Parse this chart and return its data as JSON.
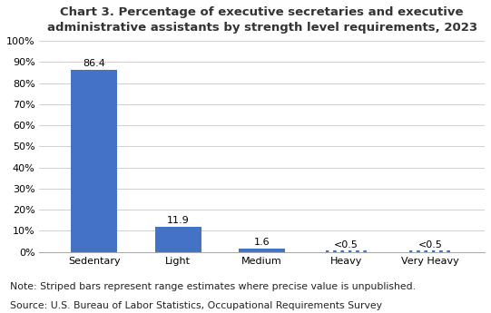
{
  "title": "Chart 3. Percentage of executive secretaries and executive\nadministrative assistants by strength level requirements, 2023",
  "categories": [
    "Sedentary",
    "Light",
    "Medium",
    "Heavy",
    "Very Heavy"
  ],
  "values": [
    86.4,
    11.9,
    1.6,
    0.3,
    0.3
  ],
  "labels": [
    "86.4",
    "11.9",
    "1.6",
    "<0.5",
    "<0.5"
  ],
  "bar_color": "#4472C4",
  "striped_indices": [
    3,
    4
  ],
  "solid_indices": [
    0,
    1,
    2
  ],
  "ylim": [
    0,
    100
  ],
  "yticks": [
    0,
    10,
    20,
    30,
    40,
    50,
    60,
    70,
    80,
    90,
    100
  ],
  "ytick_labels": [
    "0%",
    "10%",
    "20%",
    "30%",
    "40%",
    "50%",
    "60%",
    "70%",
    "80%",
    "90%",
    "100%"
  ],
  "note_line1": "Note: Striped bars represent range estimates where precise value is unpublished.",
  "note_line2": "Source: U.S. Bureau of Labor Statistics, Occupational Requirements Survey",
  "background_color": "#ffffff",
  "grid_color": "#d0d0d0",
  "title_color": "#333333",
  "title_fontsize": 9.5,
  "label_fontsize": 8,
  "tick_fontsize": 8,
  "note_fontsize": 7.8,
  "bar_width": 0.55
}
